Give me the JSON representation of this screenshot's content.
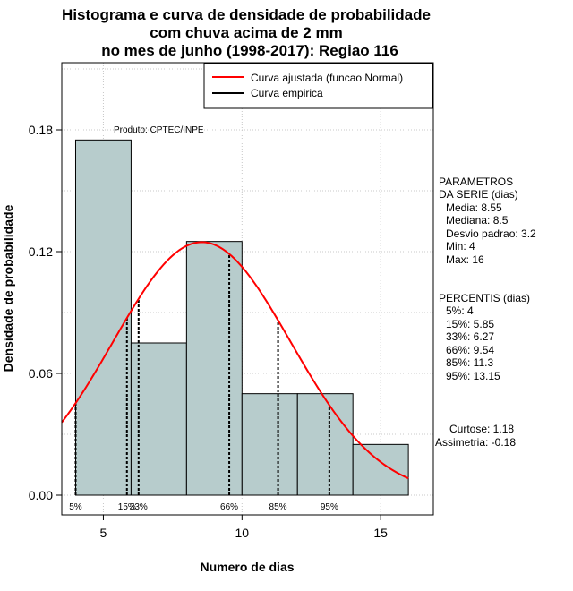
{
  "chart_data": {
    "type": "bar",
    "title_lines": [
      "Histograma e curva de densidade de probabilidade",
      "com chuva acima de 2 mm",
      "no mes de junho (1998-2017): Regiao 116"
    ],
    "xlabel": "Numero de dias",
    "ylabel": "Densidade de probabilidade",
    "xlim": [
      3.5,
      16.9
    ],
    "ylim": [
      0,
      0.21
    ],
    "x_ticks": [
      5,
      10,
      15
    ],
    "y_ticks": [
      0.0,
      0.06,
      0.12,
      0.18
    ],
    "y_tick_labels": [
      "0.00",
      "0.06",
      "0.12",
      "0.18"
    ],
    "grid": true,
    "bars": [
      {
        "x0": 4,
        "x1": 6,
        "density": 0.175
      },
      {
        "x0": 6,
        "x1": 8,
        "density": 0.075
      },
      {
        "x0": 8,
        "x1": 10,
        "density": 0.125
      },
      {
        "x0": 10,
        "x1": 12,
        "density": 0.05
      },
      {
        "x0": 12,
        "x1": 14,
        "density": 0.05
      },
      {
        "x0": 14,
        "x1": 16,
        "density": 0.025
      }
    ],
    "bar_color": "#b7cccc",
    "curve_color": "#ff0000",
    "normal_fit": {
      "mean": 8.55,
      "sd": 3.2
    },
    "percentile_lines": [
      {
        "label": "5%",
        "x": 4
      },
      {
        "label": "15%",
        "x": 5.85
      },
      {
        "label": "33%",
        "x": 6.27
      },
      {
        "label": "66%",
        "x": 9.54
      },
      {
        "label": "85%",
        "x": 11.3
      },
      {
        "label": "95%",
        "x": 13.15
      }
    ],
    "legend": [
      {
        "label": "Curva ajustada (funcao Normal)",
        "color": "#ff0000"
      },
      {
        "label": "Curva empirica",
        "color": "#000000"
      }
    ],
    "annotation": "Produto: CPTEC/INPE",
    "side_panel": {
      "parametros": [
        "PARAMETROS",
        "DA SERIE (dias)",
        "Media: 8.55",
        "Mediana: 8.5",
        "Desvio padrao: 3.2",
        "Min: 4",
        "Max: 16"
      ],
      "percentis": [
        "PERCENTIS (dias)",
        "5%: 4",
        "15%: 5.85",
        "33%: 6.27",
        "66%: 9.54",
        "85%: 11.3",
        "95%: 13.15"
      ],
      "extras": [
        "Curtose: 1.18",
        "Assimetria: -0.18"
      ]
    }
  }
}
